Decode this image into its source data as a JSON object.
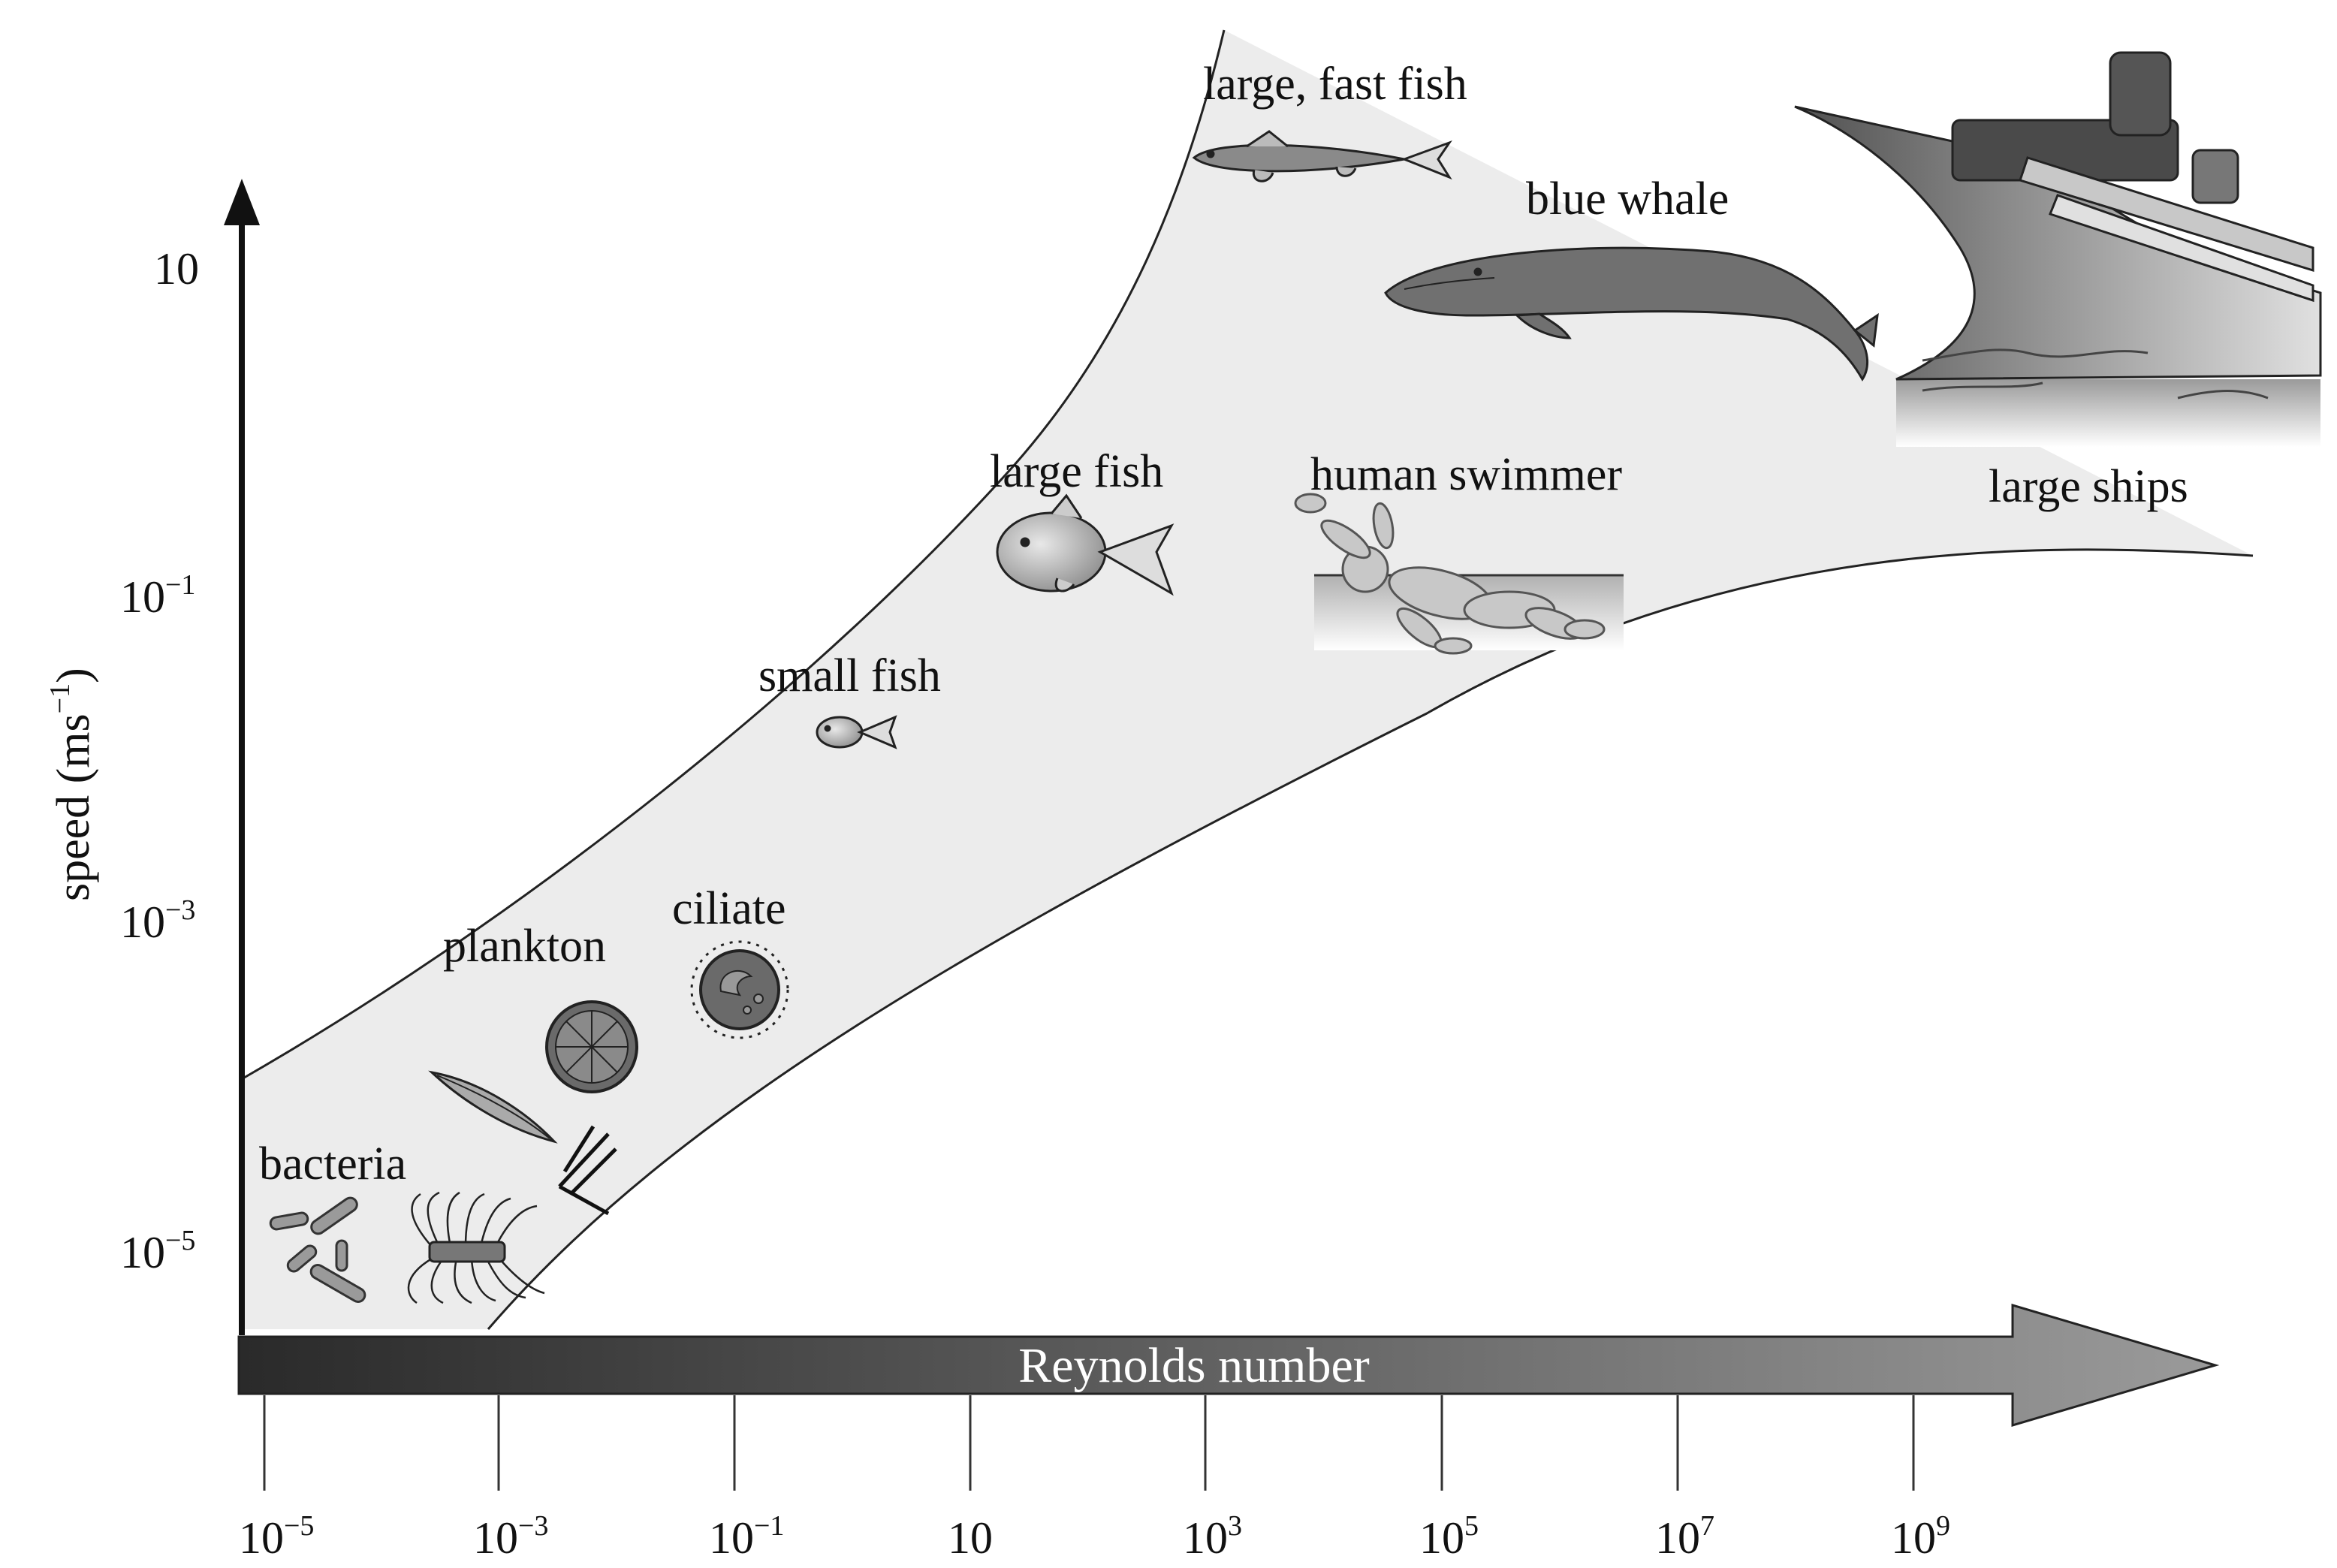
{
  "figure": {
    "x_axis": {
      "label": "Reynolds number",
      "ticks": [
        {
          "base": "10",
          "exp": "−5"
        },
        {
          "base": "10",
          "exp": "−3"
        },
        {
          "base": "10",
          "exp": "−1"
        },
        {
          "base": "10",
          "exp": ""
        },
        {
          "base": "10",
          "exp": "3"
        },
        {
          "base": "10",
          "exp": "5"
        },
        {
          "base": "10",
          "exp": "7"
        },
        {
          "base": "10",
          "exp": "9"
        }
      ]
    },
    "y_axis": {
      "label_main": "speed (ms",
      "label_exp": "−1",
      "label_close": ")",
      "ticks": [
        {
          "base": "10",
          "exp": ""
        },
        {
          "base": "10",
          "exp": "−1"
        },
        {
          "base": "10",
          "exp": "−3"
        },
        {
          "base": "10",
          "exp": "−5"
        }
      ]
    },
    "labels": {
      "bacteria": "bacteria",
      "plankton": "plankton",
      "ciliate": "ciliate",
      "small_fish": "small fish",
      "large_fish": "large fish",
      "large_fast_fish": "large, fast fish",
      "blue_whale": "blue whale",
      "human_swimmer": "human swimmer",
      "large_ships": "large ships"
    },
    "colors": {
      "band_fill": "#ececec",
      "axis": "#111111",
      "organism_fill": "#8c8c8c",
      "organism_stroke": "#222222"
    }
  }
}
